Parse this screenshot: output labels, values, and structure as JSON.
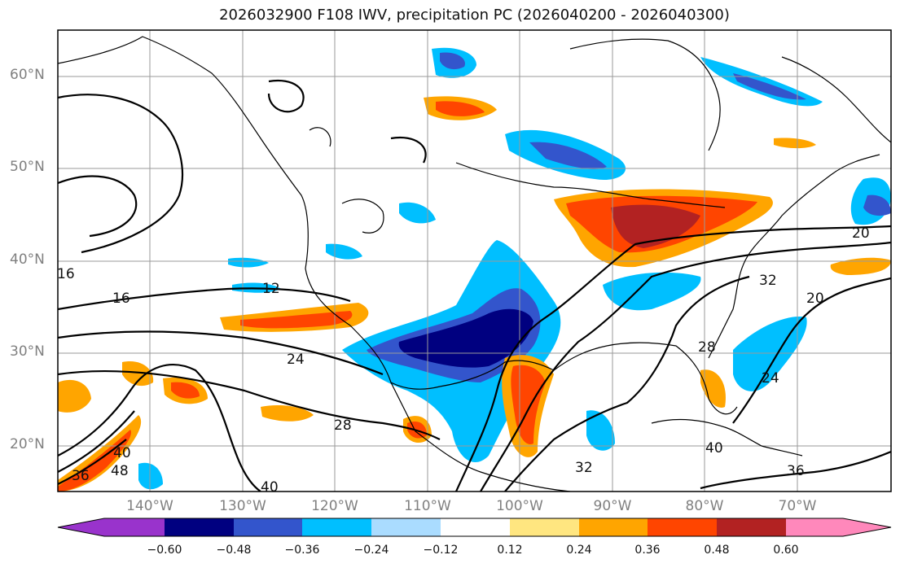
{
  "title": "2026032900 F108 IWV, precipitation PC (2026040200 - 2026040300)",
  "lat_labels": [
    "60°N",
    "50°N",
    "40°N",
    "30°N",
    "20°N"
  ],
  "lon_labels": [
    "140°W",
    "130°W",
    "120°W",
    "110°W",
    "100°W",
    "90°W",
    "80°W",
    "70°W"
  ],
  "contour_labels": [
    "16",
    "16",
    "12",
    "24",
    "28",
    "40",
    "20",
    "32",
    "20",
    "28",
    "24",
    "40",
    "36",
    "32",
    "40",
    "48",
    "36"
  ],
  "colorbar": {
    "ticks": [
      "−0.60",
      "−0.48",
      "−0.36",
      "−0.24",
      "−0.12",
      "0.12",
      "0.24",
      "0.36",
      "0.48",
      "0.60"
    ],
    "colors": {
      "under": "#9933cc",
      "c1": "#000080",
      "c2": "#3355cc",
      "c3": "#00bfff",
      "c4": "#aadcff",
      "c5": "#ffffff",
      "c6": "#ffe680",
      "c7": "#ffa500",
      "c8": "#ff4500",
      "c9": "#b22222",
      "over": "#ff88bb"
    }
  }
}
